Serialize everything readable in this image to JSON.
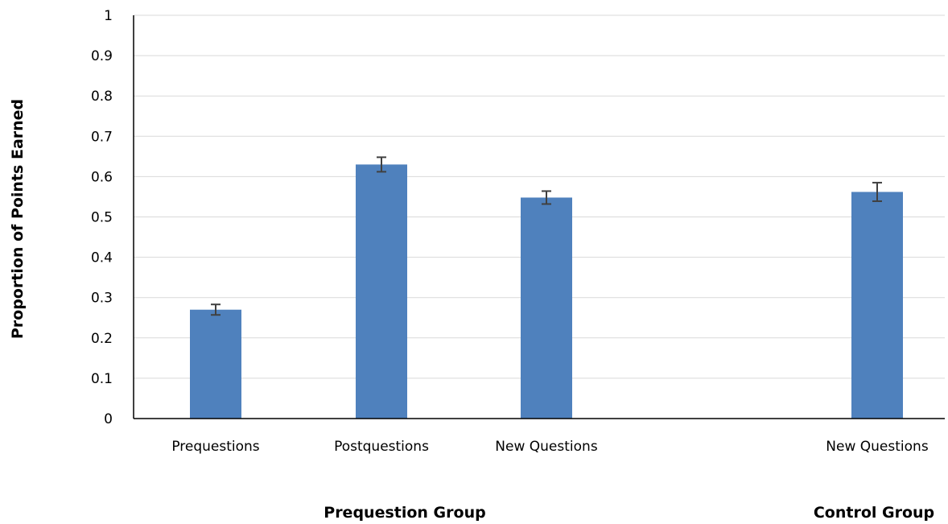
{
  "chart_data": {
    "type": "bar",
    "title": "",
    "xlabel": "",
    "ylabel": "Proportion of Points Earned",
    "ylim": [
      0,
      1
    ],
    "yticks": [
      "0",
      "0.1",
      "0.2",
      "0.3",
      "0.4",
      "0.5",
      "0.6",
      "0.7",
      "0.8",
      "0.9",
      "1"
    ],
    "grid": true,
    "legend": "none",
    "categories": [
      "Prequestions",
      "Postquestions",
      "New Questions",
      "New Questions"
    ],
    "values": [
      0.27,
      0.63,
      0.548,
      0.562
    ],
    "error_bars": [
      0.013,
      0.018,
      0.016,
      0.023
    ],
    "groups": [
      {
        "label": "Prequestion Group",
        "categories": [
          "Prequestions",
          "Postquestions",
          "New Questions"
        ]
      },
      {
        "label": "Control Group",
        "categories": [
          "New Questions"
        ]
      }
    ]
  },
  "colors": {
    "bar": "#4f81bd",
    "gridline": "#d9d9d9",
    "axis": "#000000",
    "error_bar": "#404040"
  }
}
